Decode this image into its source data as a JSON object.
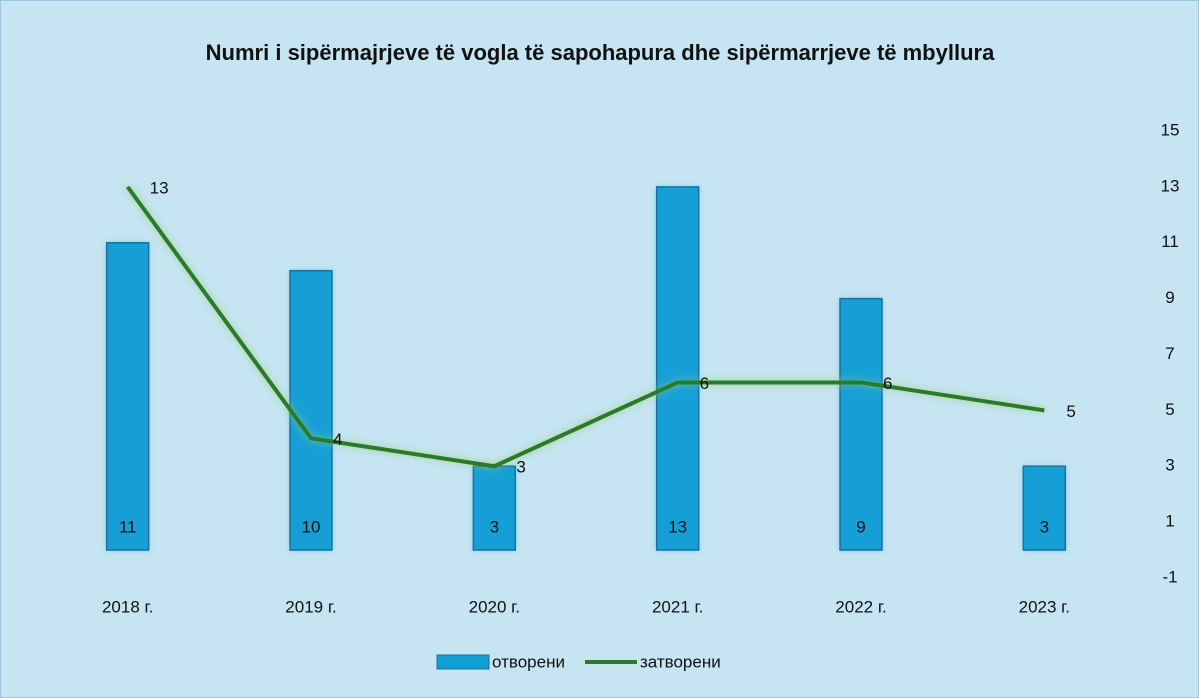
{
  "chart_data": {
    "type": "combo",
    "title": "Numri i sipërmajrjeve të vogla të sapohapura dhe sipërmarrjeve të mbyllura",
    "categories": [
      "2018 г.",
      "2019 г.",
      "2020 г.",
      "2021 г.",
      "2022 г.",
      "2023 г."
    ],
    "series": [
      {
        "name": "отворени",
        "type": "bar",
        "color": "#129fd6",
        "values": [
          11,
          10,
          3,
          13,
          9,
          3
        ]
      },
      {
        "name": "затворени",
        "type": "line",
        "color": "#2b7a2b",
        "values": [
          13,
          4,
          3,
          6,
          6,
          5
        ]
      }
    ],
    "ylim": [
      -1,
      15
    ],
    "yticks": [
      -1,
      1,
      3,
      5,
      7,
      9,
      11,
      13,
      15
    ],
    "legend": "bottom"
  }
}
